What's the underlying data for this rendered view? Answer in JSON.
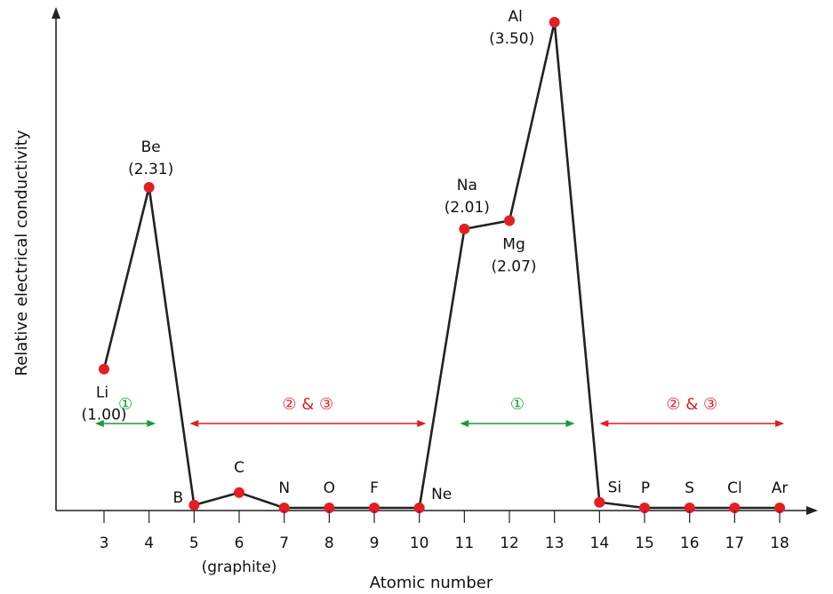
{
  "chart_data": {
    "type": "line",
    "xlabel": "Atomic number",
    "ylabel": "Relative electrical conductivity",
    "x": [
      3,
      4,
      5,
      6,
      7,
      8,
      9,
      10,
      11,
      12,
      13,
      14,
      15,
      16,
      17,
      18
    ],
    "xlim": [
      2.05,
      18.9
    ],
    "ylim": [
      0,
      3.65
    ],
    "grid": false,
    "point_color": "#e31e24",
    "line_color": "#222222",
    "series": [
      {
        "values": [
          1.0,
          2.31,
          0.02,
          0.11,
          0.0,
          0.0,
          0.0,
          0.0,
          2.01,
          2.07,
          3.5,
          0.04,
          0.0,
          0.0,
          0.0,
          0.0
        ],
        "labels": [
          "Li",
          "Be",
          "B",
          "C",
          "N",
          "O",
          "F",
          "Ne",
          "Na",
          "Mg",
          "Al",
          "Si",
          "P",
          "S",
          "Cl",
          "Ar"
        ],
        "value_labels": [
          "(1.00)",
          "(2.31)",
          "",
          "",
          "",
          "",
          "",
          "",
          "(2.01)",
          "(2.07)",
          "(3.50)",
          "",
          "",
          "",
          "",
          ""
        ]
      }
    ],
    "annotations": [
      {
        "text": "(graphite)",
        "at_x": 6
      }
    ],
    "ranges": [
      {
        "label": "①",
        "from": 2.8,
        "to": 4.15,
        "color": "#1a9a3a"
      },
      {
        "label": "② & ③",
        "from": 4.9,
        "to": 10.15,
        "color": "#e31e24"
      },
      {
        "label": "①",
        "from": 10.9,
        "to": 13.45,
        "color": "#1a9a3a"
      },
      {
        "label": "② & ③",
        "from": 14.0,
        "to": 18.1,
        "color": "#e31e24"
      }
    ]
  }
}
